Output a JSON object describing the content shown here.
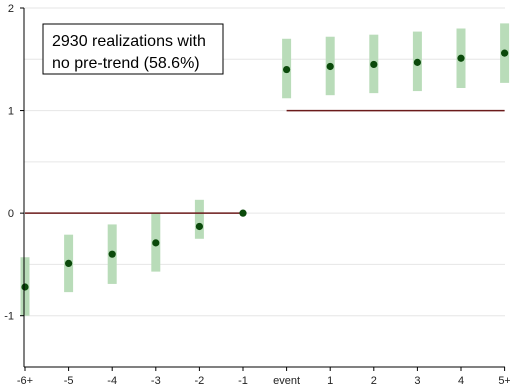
{
  "chart_data": {
    "type": "scatter",
    "title": "",
    "xlabel": "",
    "ylabel": "",
    "categories": [
      "-6+",
      "-5",
      "-4",
      "-3",
      "-2",
      "-1",
      "event",
      "1",
      "2",
      "3",
      "4",
      "5+"
    ],
    "series": [
      {
        "estimates": [
          -0.72,
          -0.49,
          -0.4,
          -0.29,
          -0.13,
          0.0,
          1.4,
          1.43,
          1.45,
          1.47,
          1.51,
          1.56
        ],
        "ci_low": [
          -1.0,
          -0.77,
          -0.69,
          -0.57,
          -0.25,
          0.0,
          1.12,
          1.15,
          1.17,
          1.19,
          1.22,
          1.27
        ],
        "ci_high": [
          -0.43,
          -0.21,
          -0.11,
          0.0,
          0.13,
          0.0,
          1.7,
          1.72,
          1.74,
          1.77,
          1.8,
          1.85
        ]
      }
    ],
    "reference_lines": [
      {
        "y": 0,
        "x_from": "-6+",
        "x_to": "-1"
      },
      {
        "y": 1,
        "x_from": "event",
        "x_to": "5+"
      }
    ],
    "ylim": [
      -1.5,
      2.0
    ],
    "yticks": [
      -1,
      0,
      1,
      2
    ],
    "grid": "horizontal",
    "annotation": {
      "lines": [
        "2930 realizations with",
        "no pre-trend (58.6%)"
      ]
    },
    "colors": {
      "marker": "#0b4a0b",
      "ci_band": "#b9dcb9",
      "reference_line": "#6b1a1a",
      "grid": "#e6e6e6",
      "axis": "#000000"
    }
  }
}
